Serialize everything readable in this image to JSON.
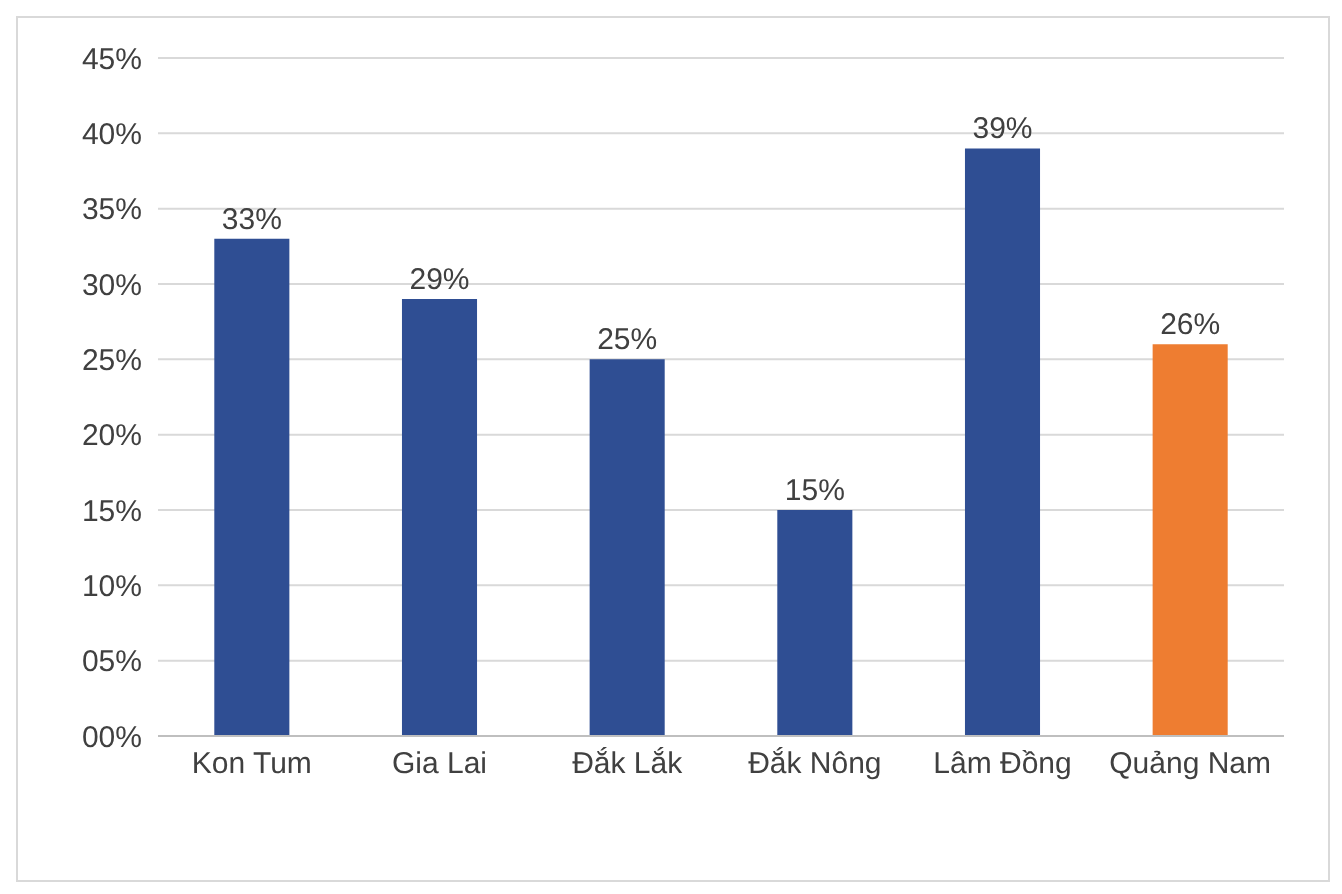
{
  "chart_data": {
    "type": "bar",
    "categories": [
      "Kon Tum",
      "Gia Lai",
      "Đắk Lắk",
      "Đắk Nông",
      "Lâm Đồng",
      "Quảng Nam"
    ],
    "values": [
      33,
      29,
      25,
      15,
      39,
      26
    ],
    "colors": [
      "#2f4e93",
      "#2f4e93",
      "#2f4e93",
      "#2f4e93",
      "#2f4e93",
      "#ee7d31"
    ],
    "value_labels": [
      "33%",
      "29%",
      "25%",
      "15%",
      "39%",
      "26%"
    ],
    "ylim": [
      0,
      45
    ],
    "yticks": [
      {
        "value": 0,
        "label": "00%"
      },
      {
        "value": 5,
        "label": "05%"
      },
      {
        "value": 10,
        "label": "10%"
      },
      {
        "value": 15,
        "label": "15%"
      },
      {
        "value": 20,
        "label": "20%"
      },
      {
        "value": 25,
        "label": "25%"
      },
      {
        "value": 30,
        "label": "30%"
      },
      {
        "value": 35,
        "label": "35%"
      },
      {
        "value": 40,
        "label": "40%"
      },
      {
        "value": 45,
        "label": "45%"
      }
    ],
    "grid": "y"
  }
}
